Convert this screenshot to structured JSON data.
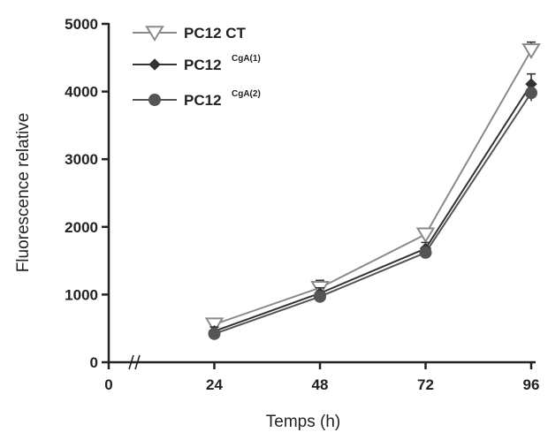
{
  "chart_data": {
    "type": "line",
    "xlabel": "Temps (h)",
    "ylabel": "Fluorescence relative",
    "x": [
      24,
      48,
      72,
      96
    ],
    "xlim": [
      0,
      96
    ],
    "ylim": [
      0,
      5000
    ],
    "x_ticks": [
      0,
      24,
      48,
      72,
      96
    ],
    "y_ticks": [
      0,
      1000,
      2000,
      3000,
      4000,
      5000
    ],
    "legend_position": "top-left",
    "series": [
      {
        "name": "PC12 CT",
        "legend_base": "PC12 CT",
        "legend_sup": "",
        "marker": "open-triangle-down",
        "color": "#8a8a8a",
        "values": [
          560,
          1100,
          1890,
          4610
        ],
        "errors": [
          80,
          110,
          90,
          120
        ]
      },
      {
        "name": "PC12 CgA(1)",
        "legend_base": "PC12",
        "legend_sup": "CgA(1)",
        "marker": "filled-diamond",
        "color": "#333333",
        "values": [
          460,
          1020,
          1680,
          4110
        ],
        "errors": [
          60,
          80,
          90,
          150
        ]
      },
      {
        "name": "PC12 CgA(2)",
        "legend_base": "PC12",
        "legend_sup": "CgA(2)",
        "marker": "filled-circle",
        "color": "#555555",
        "values": [
          420,
          970,
          1620,
          3980
        ],
        "errors": [
          50,
          70,
          80,
          120
        ]
      }
    ]
  }
}
